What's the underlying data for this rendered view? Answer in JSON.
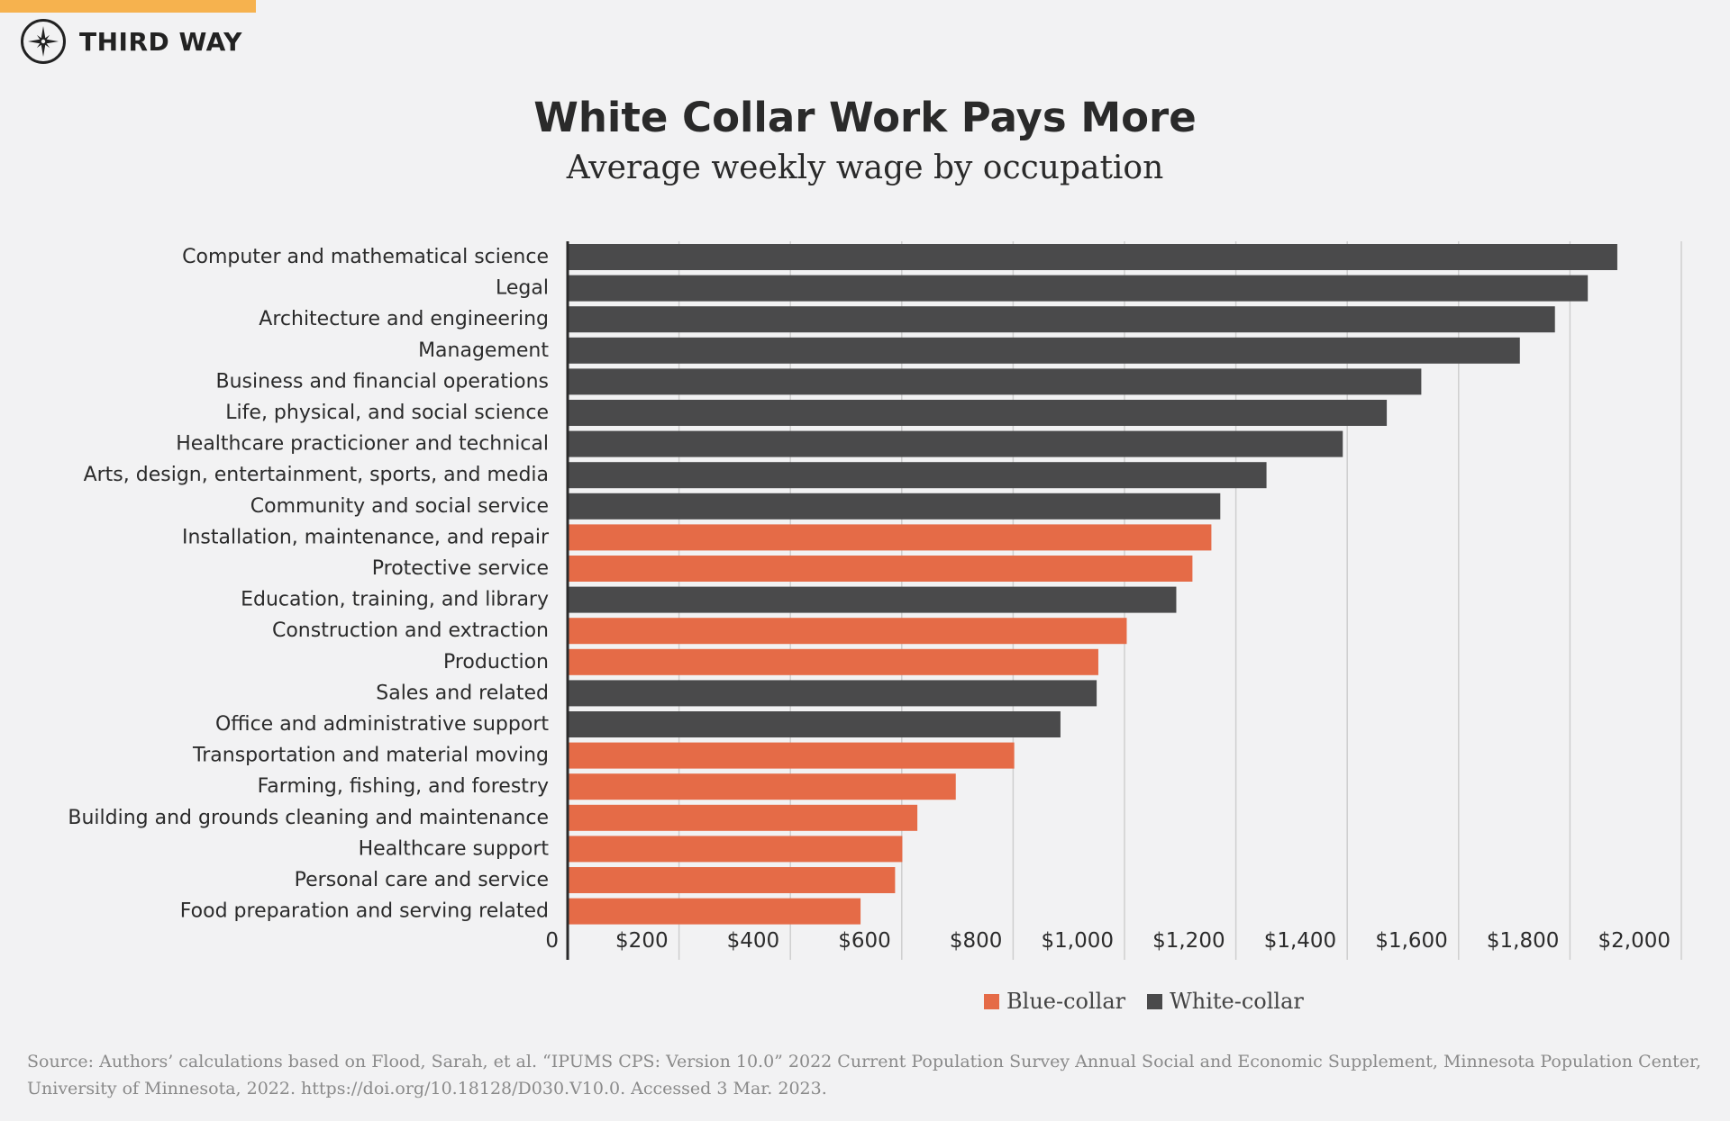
{
  "brand": {
    "name": "THIRD WAY",
    "logo_icon": "compass-star-icon",
    "accent_color": "#f6b24e"
  },
  "header": {
    "title": "White Collar Work Pays More",
    "subtitle": "Average weekly wage by occupation"
  },
  "chart_data": {
    "type": "bar",
    "orientation": "horizontal",
    "title": "White Collar Work Pays More",
    "subtitle": "Average weekly wage by occupation",
    "xlabel": "",
    "ylabel": "",
    "xlim": [
      0,
      2000
    ],
    "x_ticks": [
      0,
      200,
      400,
      600,
      800,
      1000,
      1200,
      1400,
      1600,
      1800,
      2000
    ],
    "x_tick_labels": [
      "0",
      "$200",
      "$400",
      "$600",
      "$800",
      "$1,000",
      "$1,200",
      "$1,400",
      "$1,600",
      "$1,800",
      "$2,000"
    ],
    "grid": "vertical",
    "legend_position": "bottom-right",
    "colors": {
      "Blue-collar": "#e56b47",
      "White-collar": "#4a4a4b"
    },
    "categories": [
      "Computer and mathematical science",
      "Legal",
      "Architecture and engineering",
      "Management",
      "Business and financial operations",
      "Life, physical, and social science",
      "Healthcare practicioner and technical",
      "Arts, design, entertainment, sports, and media",
      "Community and social service",
      "Installation, maintenance, and repair",
      "Protective service",
      "Education, training, and library",
      "Construction and extraction",
      "Production",
      "Sales and related",
      "Office and administrative support",
      "Transportation and material moving",
      "Farming, fishing, and forestry",
      "Building and grounds cleaning and maintenance",
      "Healthcare support",
      "Personal care and service",
      "Food preparation and serving related"
    ],
    "values": [
      1885,
      1832,
      1773,
      1710,
      1533,
      1471,
      1392,
      1255,
      1172,
      1156,
      1122,
      1093,
      1004,
      953,
      950,
      885,
      802,
      697,
      628,
      601,
      588,
      526
    ],
    "groups": [
      "White-collar",
      "White-collar",
      "White-collar",
      "White-collar",
      "White-collar",
      "White-collar",
      "White-collar",
      "White-collar",
      "White-collar",
      "Blue-collar",
      "Blue-collar",
      "White-collar",
      "Blue-collar",
      "Blue-collar",
      "White-collar",
      "White-collar",
      "Blue-collar",
      "Blue-collar",
      "Blue-collar",
      "Blue-collar",
      "Blue-collar",
      "Blue-collar"
    ],
    "legend": [
      "Blue-collar",
      "White-collar"
    ]
  },
  "footer": {
    "source": "Source: Authors’ calculations based on Flood, Sarah, et al. “IPUMS CPS: Version 10.0” 2022 Current Population Survey Annual Social and Economic Supplement, Minnesota Population Center, University of Minnesota, 2022. https://doi.org/10.18128/D030.V10.0. Accessed 3 Mar. 2023."
  }
}
